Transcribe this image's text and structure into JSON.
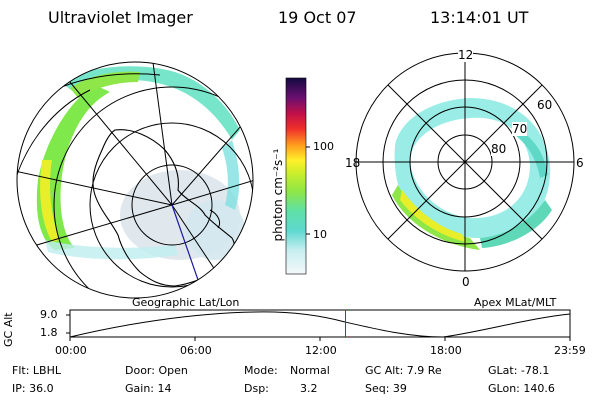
{
  "header": {
    "instrument": "Ultraviolet Imager",
    "date": "19 Oct 07",
    "time": "13:14:01 UT"
  },
  "colorbar": {
    "unit_label": "photon cm⁻²s⁻¹",
    "ticks": [
      "100",
      "10"
    ]
  },
  "left_panel": {
    "caption": "Geographic Lat/Lon"
  },
  "right_panel": {
    "caption": "Apex MLat/MLT",
    "mlt_labels": {
      "top": "12",
      "left": "18",
      "right": "6",
      "bottom": "0"
    },
    "lat_labels": [
      "60",
      "70",
      "80"
    ]
  },
  "timeline": {
    "ylabel": "GC Alt",
    "y_ticks": [
      "9.0",
      "1.8"
    ],
    "x_ticks": [
      "00:00",
      "06:00",
      "12:00",
      "18:00",
      "23:59"
    ],
    "marker_fraction": 0.551,
    "marker_color": "#ff0000"
  },
  "info": {
    "filter": "Flt: LBHL",
    "ip": "IP: 36.0",
    "door": "Door: Open",
    "gain": "Gain: 14",
    "mode_label": "Mode:",
    "mode_value": "Normal",
    "dsp_label": "Dsp:",
    "dsp_value": "3.2",
    "gc_alt": "GC Alt: 7.9 Re",
    "seq": "Seq: 39",
    "glat": "GLat: -78.1",
    "glon": "GLon: 140.6"
  },
  "colors": {
    "aurora_weak": "#4fe0d8",
    "aurora_mid": "#7fe84a",
    "aurora_strong": "#e8ef2a",
    "haze": "#d8e4ea"
  }
}
